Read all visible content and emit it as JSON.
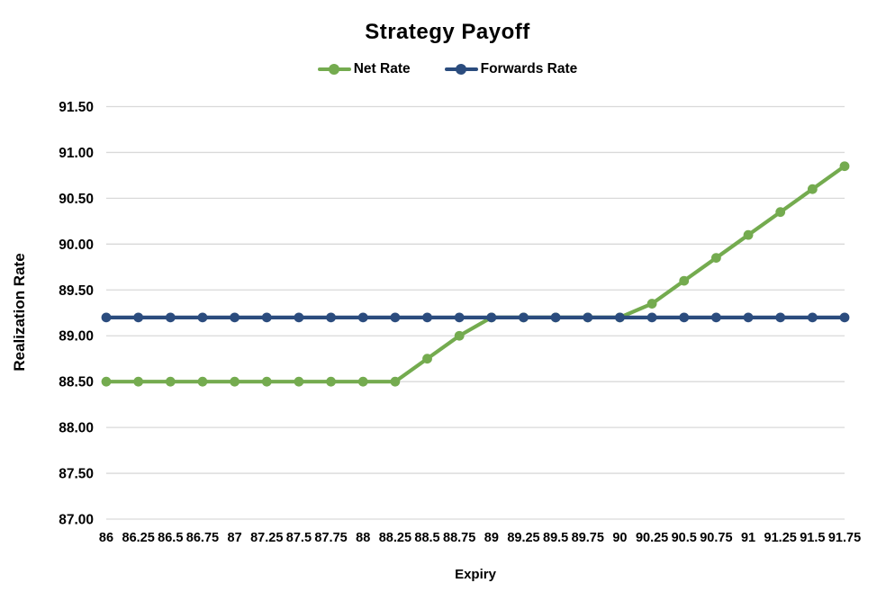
{
  "chart_data": {
    "type": "line",
    "title": "Strategy Payoff",
    "xlabel": "Expiry",
    "ylabel": "Realization Rate",
    "grid": "horizontal-only",
    "gridline_color": "#d9d9d9",
    "legend_position": "top-center",
    "xlim": [
      86,
      91.75
    ],
    "ylim": [
      87,
      91.5
    ],
    "x": [
      86,
      86.25,
      86.5,
      86.75,
      87,
      87.25,
      87.5,
      87.75,
      88,
      88.25,
      88.5,
      88.75,
      89,
      89.25,
      89.5,
      89.75,
      90,
      90.25,
      90.5,
      90.75,
      91,
      91.25,
      91.5,
      91.75
    ],
    "xtick_labels": [
      "86",
      "86.25",
      "86.5",
      "86.75",
      "87",
      "87.25",
      "87.5",
      "87.75",
      "88",
      "88.25",
      "88.5",
      "88.75",
      "89",
      "89.25",
      "89.5",
      "89.75",
      "90",
      "90.25",
      "90.5",
      "90.75",
      "91",
      "91.25",
      "91.5",
      "91.75"
    ],
    "ytick_values": [
      87,
      87.5,
      88,
      88.5,
      89,
      89.5,
      90,
      90.5,
      91,
      91.5
    ],
    "ytick_labels": [
      "87.00",
      "87.50",
      "88.00",
      "88.50",
      "89.00",
      "89.50",
      "90.00",
      "90.50",
      "91.00",
      "91.50"
    ],
    "series": [
      {
        "name": "Net Rate",
        "color": "#74ab4f",
        "values": [
          88.5,
          88.5,
          88.5,
          88.5,
          88.5,
          88.5,
          88.5,
          88.5,
          88.5,
          88.5,
          88.75,
          89.0,
          89.2,
          89.2,
          89.2,
          89.2,
          89.2,
          89.35,
          89.6,
          89.85,
          90.1,
          90.35,
          90.6,
          90.85
        ]
      },
      {
        "name": "Forwards Rate",
        "color": "#2b4c7e",
        "values": [
          89.2,
          89.2,
          89.2,
          89.2,
          89.2,
          89.2,
          89.2,
          89.2,
          89.2,
          89.2,
          89.2,
          89.2,
          89.2,
          89.2,
          89.2,
          89.2,
          89.2,
          89.2,
          89.2,
          89.2,
          89.2,
          89.2,
          89.2,
          89.2
        ]
      }
    ]
  }
}
